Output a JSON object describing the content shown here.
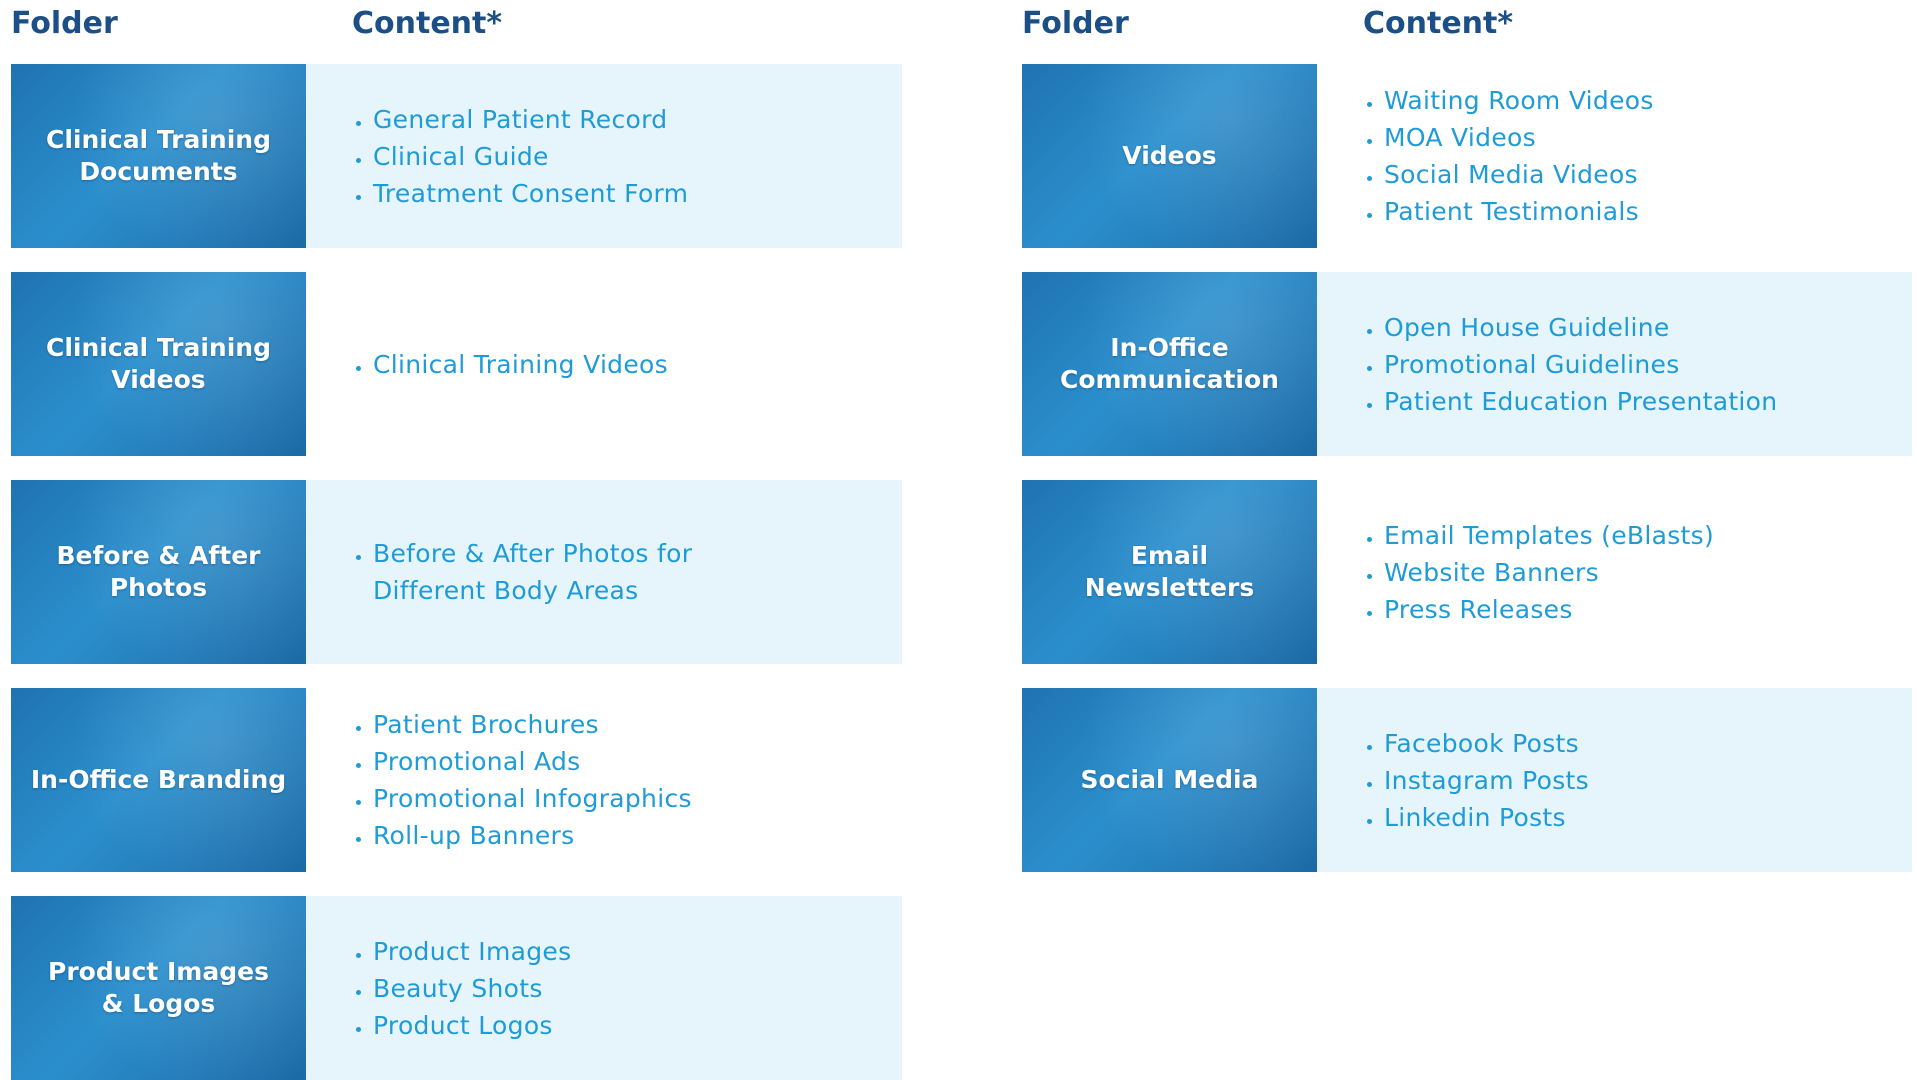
{
  "tables": [
    {
      "header": {
        "folder": "Folder",
        "content": "Content*"
      },
      "rows": [
        {
          "folder": [
            "Clinical Training",
            "Documents"
          ],
          "items": [
            "General Patient Record",
            "Clinical Guide",
            "Treatment Consent Form"
          ]
        },
        {
          "folder": [
            "Clinical Training",
            "Videos"
          ],
          "items": [
            "Clinical Training Videos"
          ]
        },
        {
          "folder": [
            "Before & After",
            "Photos"
          ],
          "items": [
            "Before & After Photos for Different Body Areas"
          ]
        },
        {
          "folder": [
            "In-Office Branding"
          ],
          "items": [
            "Patient Brochures",
            "Promotional Ads",
            "Promotional Infographics",
            "Roll-up Banners"
          ]
        },
        {
          "folder": [
            "Product Images",
            "& Logos"
          ],
          "items": [
            "Product Images",
            "Beauty Shots",
            "Product Logos"
          ]
        }
      ]
    },
    {
      "header": {
        "folder": "Folder",
        "content": "Content*"
      },
      "rows": [
        {
          "folder": [
            "Videos"
          ],
          "items": [
            "Waiting Room Videos",
            "MOA Videos",
            "Social Media Videos",
            "Patient Testimonials"
          ]
        },
        {
          "folder": [
            "In-Office",
            "Communication"
          ],
          "items": [
            "Open House Guideline",
            "Promotional Guidelines",
            "Patient Education Presentation"
          ]
        },
        {
          "folder": [
            "Email",
            "Newsletters"
          ],
          "items": [
            "Email Templates (eBlasts)",
            "Website Banners",
            "Press Releases"
          ]
        },
        {
          "folder": [
            "Social Media"
          ],
          "items": [
            "Facebook Posts",
            "Instagram Posts",
            "Linkedin Posts"
          ]
        }
      ]
    }
  ]
}
